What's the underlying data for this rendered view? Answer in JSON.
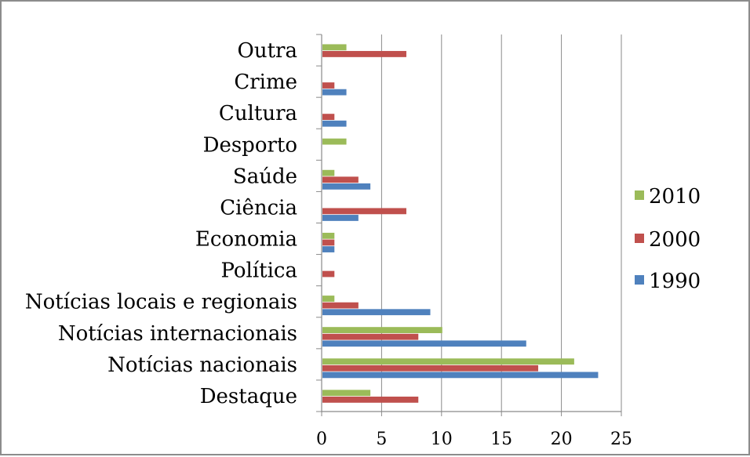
{
  "chart_data": {
    "type": "bar",
    "orientation": "horizontal",
    "categories": [
      "Destaque",
      "Notícias nacionais",
      "Notícias internacionais",
      "Notícias locais e regionais",
      "Política",
      "Economia",
      "Ciência",
      "Saúde",
      "Desporto",
      "Cultura",
      "Crime",
      "Outra"
    ],
    "series": [
      {
        "name": "1990",
        "color": "#4f81bd",
        "values": [
          0,
          23,
          17,
          9,
          0,
          1,
          3,
          4,
          0,
          2,
          2,
          0
        ]
      },
      {
        "name": "2000",
        "color": "#c0504d",
        "values": [
          8,
          18,
          8,
          3,
          1,
          1,
          7,
          3,
          0,
          1,
          1,
          7
        ]
      },
      {
        "name": "2010",
        "color": "#9bbb59",
        "values": [
          4,
          21,
          10,
          1,
          0,
          1,
          0,
          1,
          2,
          0,
          0,
          2
        ]
      }
    ],
    "x_ticks": [
      "0",
      "5",
      "10",
      "15",
      "20",
      "25"
    ],
    "xlim": [
      0,
      25
    ],
    "grid": "vertical major gridlines",
    "legend_position": "right",
    "legend_order": [
      "2010",
      "2000",
      "1990"
    ]
  }
}
